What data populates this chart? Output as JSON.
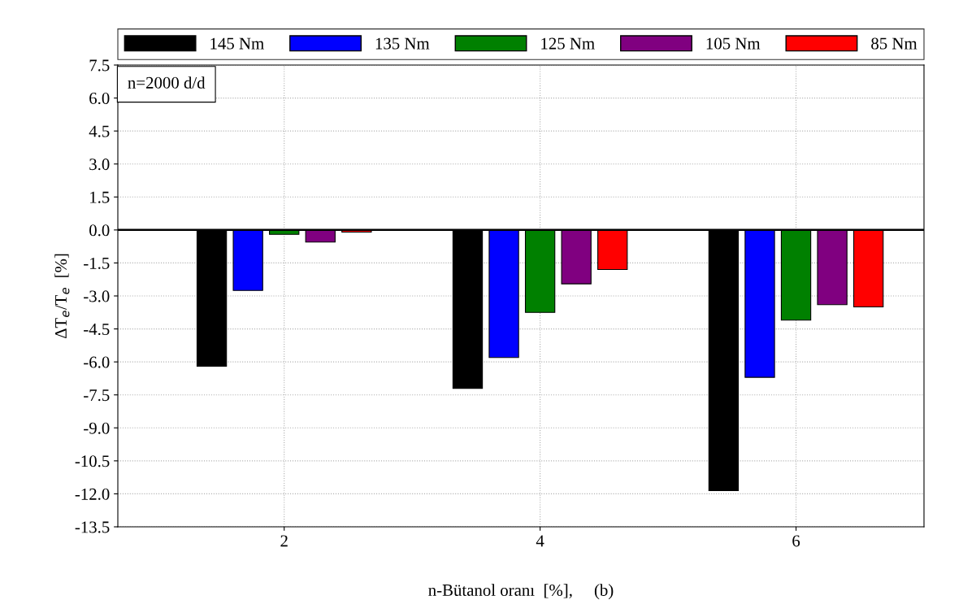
{
  "chart_data": {
    "type": "bar",
    "xlabel": "n-Bütanol oranı  [%],     (b)",
    "ylabel": "ΔT$_{e}$/T$_{e}$  [%]",
    "x": [
      2,
      4,
      6
    ],
    "series": [
      {
        "name": "145 Nm",
        "color": "#000000",
        "values": [
          -6.2,
          -7.2,
          -11.85
        ]
      },
      {
        "name": "135 Nm",
        "color": "#0000ff",
        "values": [
          -2.75,
          -5.8,
          -6.7
        ]
      },
      {
        "name": "125 Nm",
        "color": "#008000",
        "values": [
          -0.2,
          -3.75,
          -4.1
        ]
      },
      {
        "name": "105 Nm",
        "color": "#800080",
        "values": [
          -0.55,
          -2.45,
          -3.4
        ]
      },
      {
        "name": "85 Nm",
        "color": "#ff0000",
        "values": [
          -0.1,
          -1.8,
          -3.5
        ]
      }
    ],
    "xlim": [
      0.7,
      7.0
    ],
    "xticks": [
      2,
      4,
      6
    ],
    "ylim": [
      -13.5,
      7.5
    ],
    "yticks": [
      7.5,
      {
        "value": 6,
        "label": "6.0"
      },
      4.5,
      {
        "value": 3,
        "label": "3.0"
      },
      1.5,
      {
        "value": 0,
        "label": "0.0"
      },
      -1.5,
      {
        "value": -3,
        "label": "-3.0"
      },
      -4.5,
      {
        "value": -6,
        "label": "-6.0"
      },
      -7.5,
      {
        "value": -9,
        "label": "-9.0"
      },
      -10.5,
      {
        "value": -12,
        "label": "-12.0"
      },
      -13.5
    ],
    "ref_lines": [
      {
        "axis": "y",
        "value": 0,
        "color": "#000000",
        "line_style": "solid"
      }
    ],
    "annotations": [
      "n=2000 d/d"
    ],
    "grid": true,
    "legend": "top"
  }
}
